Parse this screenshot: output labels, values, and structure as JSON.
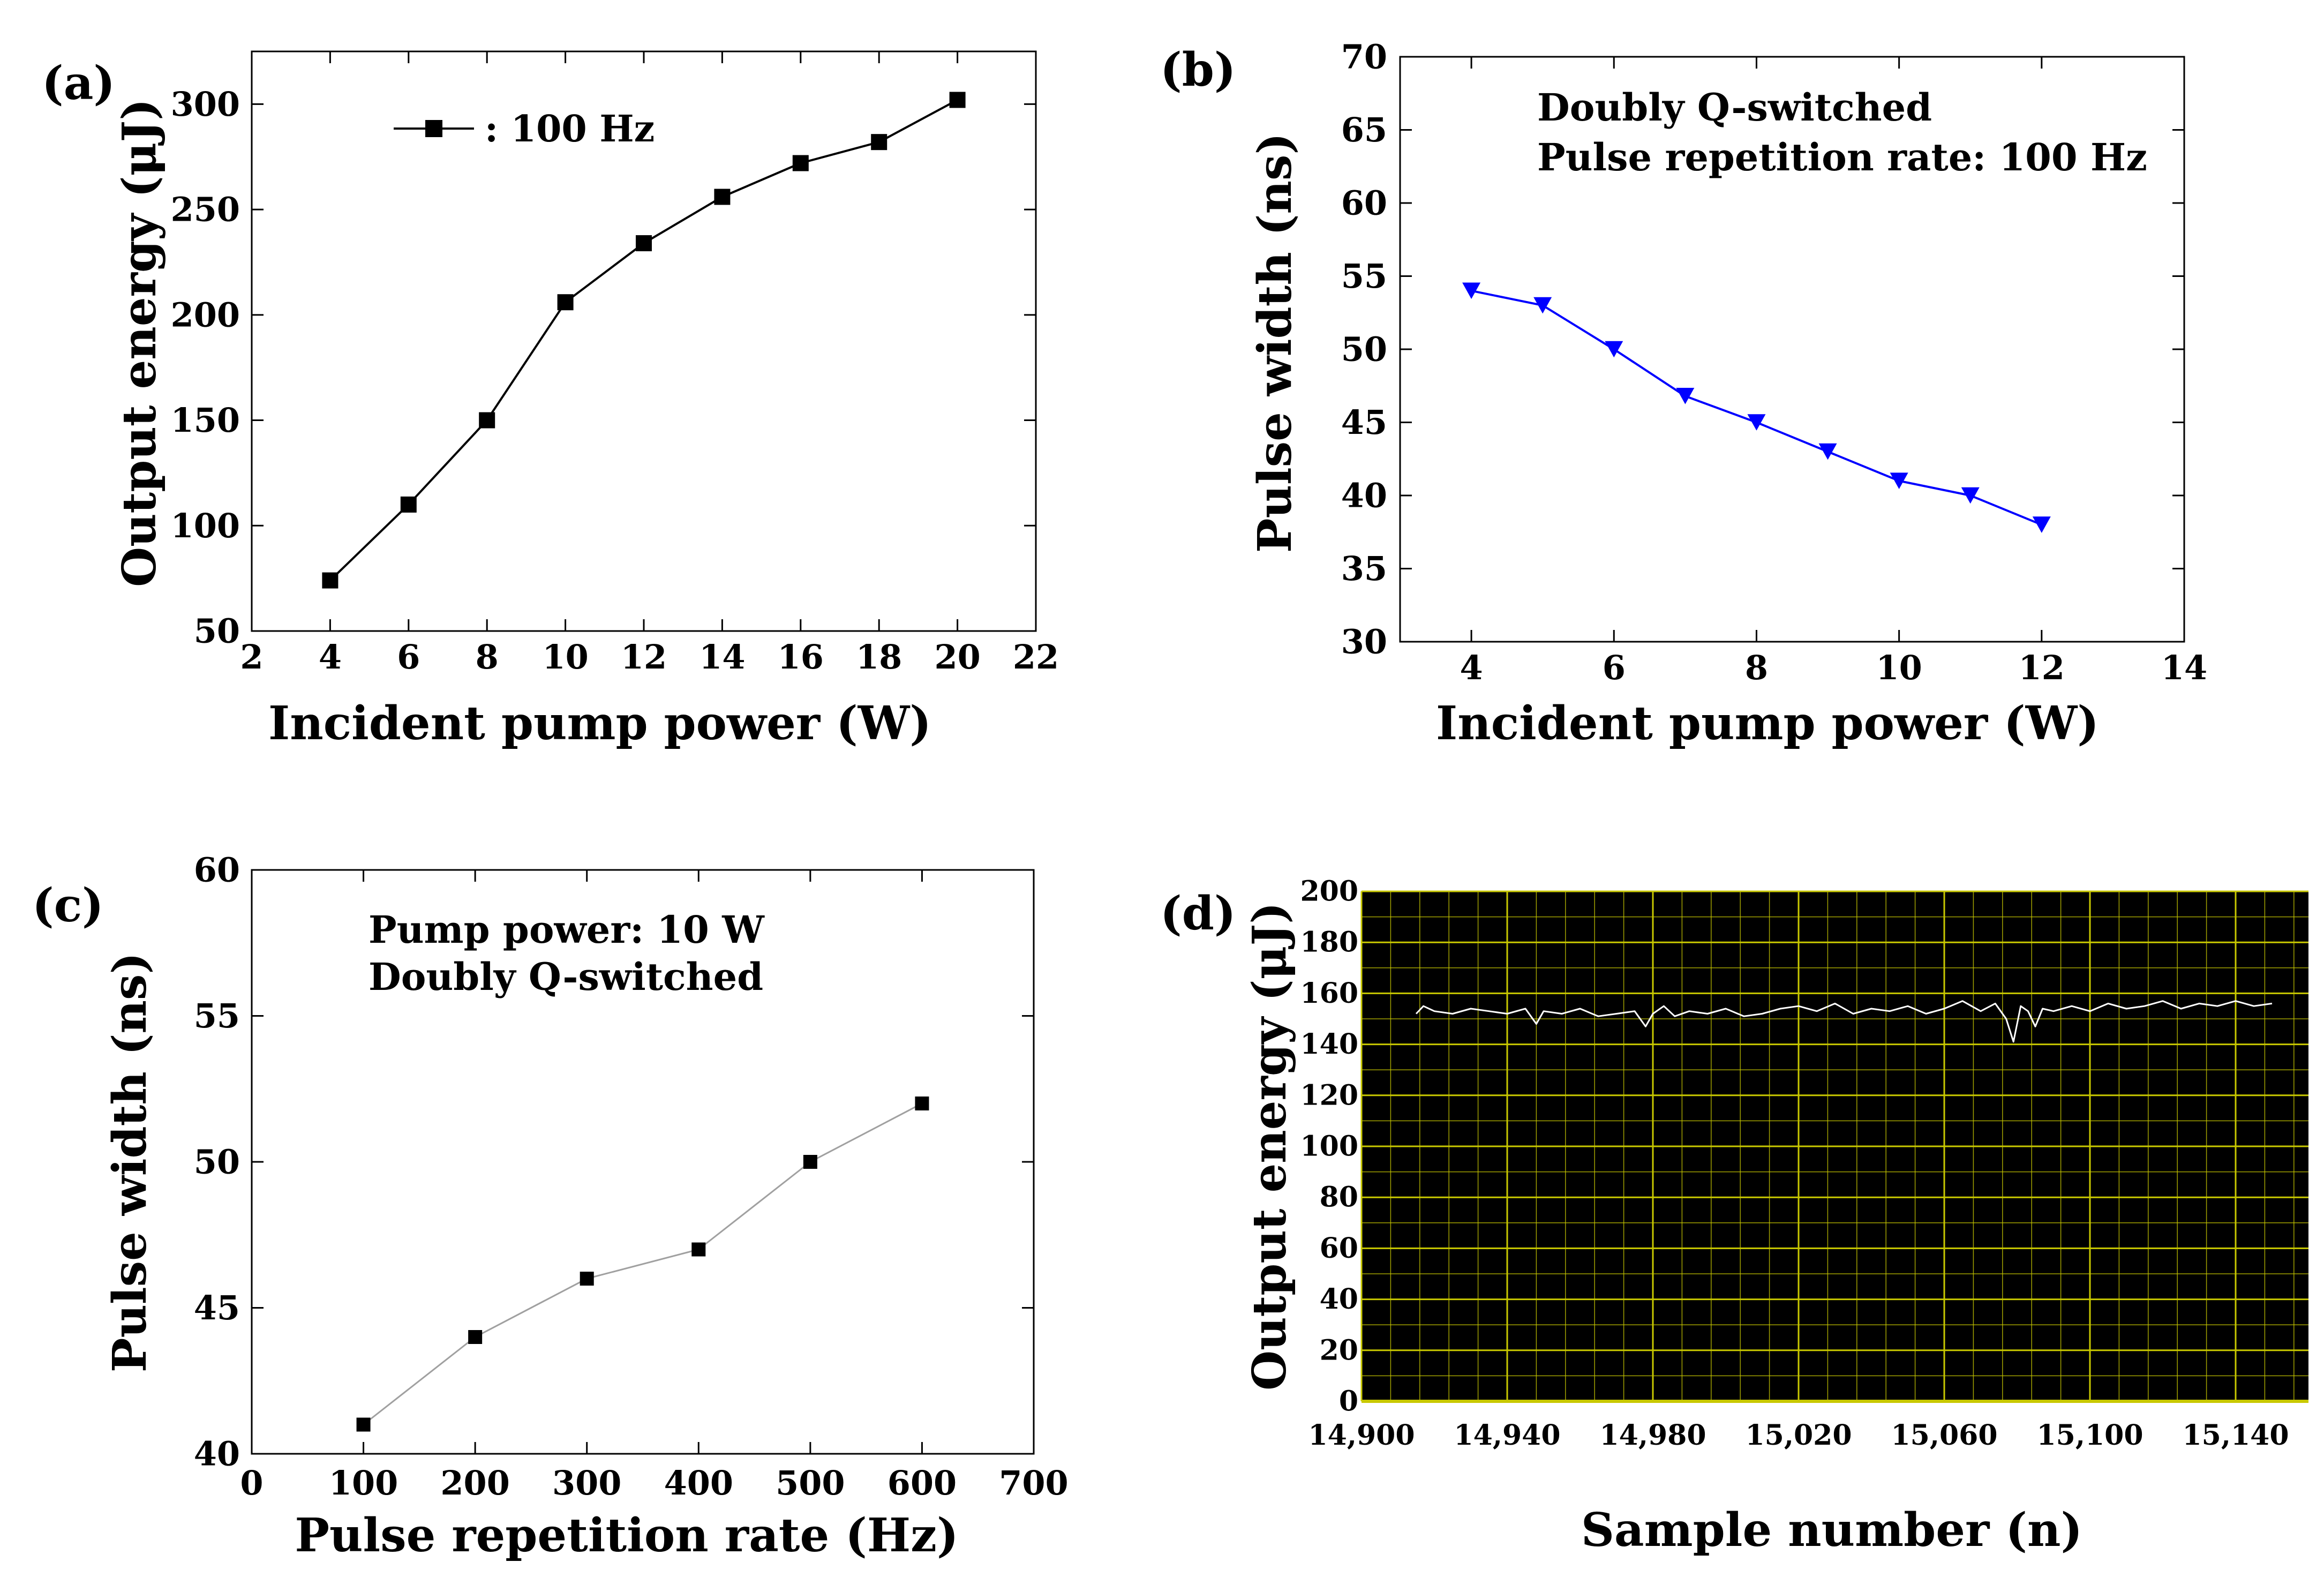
{
  "chart_data": [
    {
      "id": "a",
      "panel_label": "(a)",
      "type": "line",
      "xlabel": "Incident pump power (W)",
      "ylabel": "Output energy (μJ)",
      "xlim": [
        2,
        22
      ],
      "ylim": [
        50,
        325
      ],
      "xticks": [
        2,
        4,
        6,
        8,
        10,
        12,
        14,
        16,
        18,
        20,
        22
      ],
      "yticks": [
        50,
        100,
        150,
        200,
        250,
        300
      ],
      "x_tick_labels": [
        "2",
        "4",
        "6",
        "8",
        "10",
        "12",
        "14",
        "16",
        "18",
        "20",
        "22"
      ],
      "y_tick_labels": [
        "50",
        "100",
        "150",
        "200",
        "250",
        "300"
      ],
      "legend": {
        "position": "top-left",
        "label": ": 100 Hz"
      },
      "series": [
        {
          "name": "100 Hz",
          "marker": "square",
          "color": "#000000",
          "x": [
            4,
            6,
            8,
            10,
            12,
            14,
            16,
            18,
            20
          ],
          "values": [
            74,
            110,
            150,
            206,
            234,
            256,
            272,
            282,
            302
          ]
        }
      ]
    },
    {
      "id": "b",
      "panel_label": "(b)",
      "type": "line",
      "xlabel": "Incident pump power (W)",
      "ylabel": "Pulse width (ns)",
      "xlim": [
        3,
        14
      ],
      "ylim": [
        30,
        70
      ],
      "xticks": [
        4,
        6,
        8,
        10,
        12,
        14
      ],
      "yticks": [
        30,
        35,
        40,
        45,
        50,
        55,
        60,
        65,
        70
      ],
      "x_tick_labels": [
        "4",
        "6",
        "8",
        "10",
        "12",
        "14"
      ],
      "y_tick_labels": [
        "30",
        "35",
        "40",
        "45",
        "50",
        "55",
        "60",
        "65",
        "70"
      ],
      "annotations": [
        "Doubly Q-switched",
        "Pulse repetition rate: 100 Hz"
      ],
      "series": [
        {
          "name": "Pulse width",
          "marker": "triangle-down",
          "color": "#0000ff",
          "x": [
            4,
            5,
            6,
            7,
            8,
            9,
            10,
            11,
            12
          ],
          "values": [
            54,
            53,
            50,
            46.8,
            45,
            43,
            41,
            40,
            38
          ]
        }
      ]
    },
    {
      "id": "c",
      "panel_label": "(c)",
      "type": "line",
      "xlabel": "Pulse repetition rate (Hz)",
      "ylabel": "Pulse width (ns)",
      "xlim": [
        0,
        700
      ],
      "ylim": [
        40,
        60
      ],
      "xticks": [
        0,
        100,
        200,
        300,
        400,
        500,
        600,
        700
      ],
      "yticks": [
        40,
        45,
        50,
        55,
        60
      ],
      "x_tick_labels": [
        "0",
        "100",
        "200",
        "300",
        "400",
        "500",
        "600",
        "700"
      ],
      "y_tick_labels": [
        "40",
        "45",
        "50",
        "55",
        "60"
      ],
      "annotations": [
        "Pump power: 10 W",
        "Doubly Q-switched"
      ],
      "series": [
        {
          "name": "Pulse width",
          "marker": "square",
          "color": "#000000",
          "line_color": "#a0a0a0",
          "x": [
            100,
            200,
            300,
            400,
            500,
            600
          ],
          "values": [
            41,
            44,
            46,
            47,
            50,
            52
          ]
        }
      ]
    },
    {
      "id": "d",
      "panel_label": "(d)",
      "type": "line",
      "xlabel": "Sample number (n)",
      "ylabel": "Output energy (μJ)",
      "xlim": [
        14900,
        15160
      ],
      "ylim": [
        0,
        200
      ],
      "xticks": [
        14900,
        14940,
        14980,
        15020,
        15060,
        15100,
        15140
      ],
      "yticks": [
        0,
        20,
        40,
        60,
        80,
        100,
        120,
        140,
        160,
        180,
        200
      ],
      "x_tick_labels": [
        "14,900",
        "14,940",
        "14,980",
        "15,020",
        "15,060",
        "15,100",
        "15,140"
      ],
      "y_tick_labels": [
        "0",
        "20",
        "40",
        "60",
        "80",
        "100",
        "120",
        "140",
        "160",
        "180",
        "200"
      ],
      "background_color": "#000000",
      "grid_color": "#c8c800",
      "series": [
        {
          "name": "Output energy",
          "color": "#ffffff",
          "x": [
            14915,
            14917,
            14920,
            14925,
            14930,
            14935,
            14940,
            14945,
            14948,
            14950,
            14955,
            14960,
            14965,
            14970,
            14975,
            14978,
            14980,
            14983,
            14986,
            14990,
            14995,
            15000,
            15005,
            15010,
            15015,
            15020,
            15025,
            15030,
            15035,
            15040,
            15045,
            15050,
            15055,
            15060,
            15065,
            15070,
            15074,
            15077,
            15079,
            15081,
            15083,
            15085,
            15087,
            15090,
            15095,
            15100,
            15105,
            15110,
            15115,
            15120,
            15125,
            15130,
            15135,
            15140,
            15145,
            15150
          ],
          "values": [
            152,
            155,
            153,
            152,
            154,
            153,
            152,
            154,
            148,
            153,
            152,
            154,
            151,
            152,
            153,
            147,
            152,
            155,
            151,
            153,
            152,
            154,
            151,
            152,
            154,
            155,
            153,
            156,
            152,
            154,
            153,
            155,
            152,
            154,
            157,
            153,
            156,
            150,
            141,
            155,
            153,
            147,
            154,
            153,
            155,
            153,
            156,
            154,
            155,
            157,
            154,
            156,
            155,
            157,
            155,
            156
          ]
        }
      ]
    }
  ]
}
